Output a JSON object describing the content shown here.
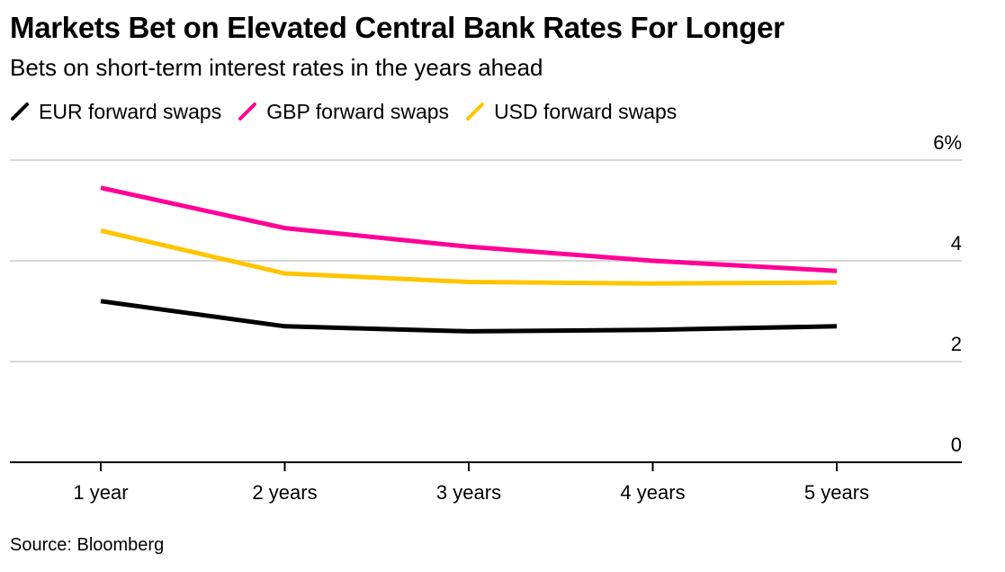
{
  "chart_data": {
    "type": "line",
    "title": "Markets Bet on Elevated Central Bank Rates For Longer",
    "subtitle": "Bets on short-term interest rates in the years ahead",
    "categories": [
      "1 year",
      "2 years",
      "3 years",
      "4 years",
      "5 years"
    ],
    "series": [
      {
        "name": "EUR forward swaps",
        "color": "#000000",
        "values": [
          3.2,
          2.7,
          2.6,
          2.63,
          2.7
        ]
      },
      {
        "name": "GBP forward swaps",
        "color": "#ff0096",
        "values": [
          5.45,
          4.65,
          4.28,
          4.0,
          3.8
        ]
      },
      {
        "name": "USD forward swaps",
        "color": "#ffc500",
        "values": [
          4.6,
          3.75,
          3.58,
          3.55,
          3.57
        ]
      }
    ],
    "ylim": [
      0,
      6
    ],
    "y_ticks": [
      "0",
      "2",
      "4",
      "6%"
    ],
    "y_tick_values": [
      0,
      2,
      4,
      6
    ],
    "y_axis_side": "right",
    "grid": true,
    "legend_position": "top-left",
    "source": "Source: Bloomberg"
  }
}
